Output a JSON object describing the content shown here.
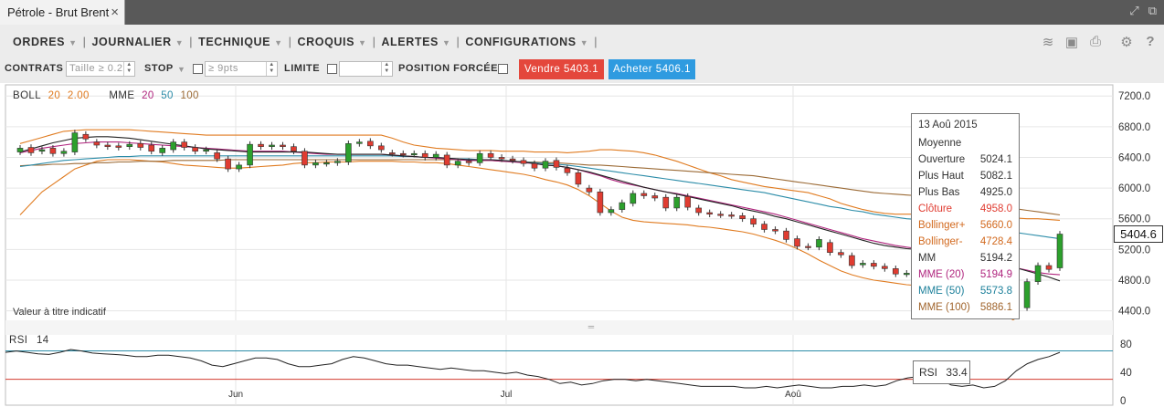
{
  "window": {
    "tab_title": "Pétrole - Brut Brent",
    "close_glyph": "×"
  },
  "menu": [
    {
      "label": "ORDRES"
    },
    {
      "label": "JOURNALIER"
    },
    {
      "label": "TECHNIQUE"
    },
    {
      "label": "CROQUIS"
    },
    {
      "label": "ALERTES"
    },
    {
      "label": "CONFIGURATIONS"
    }
  ],
  "toolbar_icons": [
    "layers-icon",
    "image-icon",
    "print-icon",
    "gear-icon",
    "help-icon"
  ],
  "orderbar": {
    "contrats_label": "CONTRATS",
    "contrats_placeholder": "Taille ≥ 0.2",
    "stop_label": "STOP",
    "stop_placeholder": "≥ 9pts",
    "limite_label": "LIMITE",
    "position_label": "POSITION FORCÉE",
    "sell_label": "Vendre 5403.1",
    "buy_label": "Acheter 5406.1"
  },
  "legend": {
    "boll_name": "BOLL",
    "boll_p1": "20",
    "boll_p2": "2.00",
    "mme_name": "MME",
    "mme_p1": "20",
    "mme_p2": "50",
    "mme_p3": "100"
  },
  "disclaimer": "Valeur à titre indicatif",
  "rsi": {
    "label": "RSI",
    "period": "14",
    "tip_label": "RSI",
    "tip_value": "33.4"
  },
  "last_price": "5404.6",
  "tooltip": {
    "date": "13 Aoû 2015",
    "subtitle": "Moyenne",
    "rows": [
      {
        "label": "Ouverture",
        "value": "5024.1",
        "color": "#333333"
      },
      {
        "label": "Plus Haut",
        "value": "5082.1",
        "color": "#333333"
      },
      {
        "label": "Plus Bas",
        "value": "4925.0",
        "color": "#333333"
      },
      {
        "label": "Clôture",
        "value": "4958.0",
        "color": "#e03c31"
      },
      {
        "label": "Bollinger+",
        "value": "5660.0",
        "color": "#d2691e"
      },
      {
        "label": "Bollinger-",
        "value": "4728.4",
        "color": "#d2691e"
      },
      {
        "label": "MM",
        "value": "5194.2",
        "color": "#333333"
      },
      {
        "label": "MME (20)",
        "value": "5194.9",
        "color": "#b0257e"
      },
      {
        "label": "MME (50)",
        "value": "5573.8",
        "color": "#1b7f9a"
      },
      {
        "label": "MME (100)",
        "value": "5886.1",
        "color": "#a0642c"
      }
    ]
  },
  "colors": {
    "up": "#2ca02c",
    "down": "#e03c31",
    "boll": "#e07b20",
    "mm": "#222222",
    "mme20": "#b0257e",
    "mme50": "#2b8ca8",
    "mme100": "#9b6a35"
  },
  "chart_data": {
    "type": "line",
    "y_axis_labels": [
      "7200.0",
      "6800.0",
      "6400.0",
      "6000.0",
      "5600.0",
      "5200.0",
      "4800.0",
      "4400.0"
    ],
    "y_range": [
      4300,
      7250
    ],
    "x_axis_labels": [
      "Jun",
      "Jul",
      "Aoû"
    ],
    "rsi_axis_labels": [
      "80",
      "40",
      "0"
    ],
    "rsi_range": [
      0,
      90
    ],
    "rsi_levels": [
      70,
      30
    ],
    "candles": [
      {
        "o": 6470,
        "c": 6520
      },
      {
        "o": 6530,
        "c": 6460
      },
      {
        "o": 6480,
        "c": 6500
      },
      {
        "o": 6520,
        "c": 6450
      },
      {
        "o": 6450,
        "c": 6480
      },
      {
        "o": 6470,
        "c": 6720
      },
      {
        "o": 6700,
        "c": 6640
      },
      {
        "o": 6600,
        "c": 6560
      },
      {
        "o": 6560,
        "c": 6540
      },
      {
        "o": 6550,
        "c": 6530
      },
      {
        "o": 6540,
        "c": 6570
      },
      {
        "o": 6580,
        "c": 6530
      },
      {
        "o": 6560,
        "c": 6480
      },
      {
        "o": 6460,
        "c": 6520
      },
      {
        "o": 6500,
        "c": 6600
      },
      {
        "o": 6600,
        "c": 6530
      },
      {
        "o": 6530,
        "c": 6480
      },
      {
        "o": 6480,
        "c": 6500
      },
      {
        "o": 6460,
        "c": 6380
      },
      {
        "o": 6380,
        "c": 6250
      },
      {
        "o": 6250,
        "c": 6300
      },
      {
        "o": 6300,
        "c": 6570
      },
      {
        "o": 6570,
        "c": 6540
      },
      {
        "o": 6540,
        "c": 6560
      },
      {
        "o": 6560,
        "c": 6540
      },
      {
        "o": 6540,
        "c": 6480
      },
      {
        "o": 6480,
        "c": 6300
      },
      {
        "o": 6300,
        "c": 6330
      },
      {
        "o": 6320,
        "c": 6330
      },
      {
        "o": 6330,
        "c": 6350
      },
      {
        "o": 6340,
        "c": 6580
      },
      {
        "o": 6580,
        "c": 6600
      },
      {
        "o": 6610,
        "c": 6550
      },
      {
        "o": 6550,
        "c": 6500
      },
      {
        "o": 6460,
        "c": 6450
      },
      {
        "o": 6450,
        "c": 6440
      },
      {
        "o": 6440,
        "c": 6450
      },
      {
        "o": 6450,
        "c": 6400
      },
      {
        "o": 6400,
        "c": 6440
      },
      {
        "o": 6430,
        "c": 6300
      },
      {
        "o": 6300,
        "c": 6350
      },
      {
        "o": 6350,
        "c": 6330
      },
      {
        "o": 6330,
        "c": 6450
      },
      {
        "o": 6450,
        "c": 6400
      },
      {
        "o": 6400,
        "c": 6380
      },
      {
        "o": 6380,
        "c": 6360
      },
      {
        "o": 6360,
        "c": 6320
      },
      {
        "o": 6320,
        "c": 6260
      },
      {
        "o": 6260,
        "c": 6350
      },
      {
        "o": 6360,
        "c": 6270
      },
      {
        "o": 6260,
        "c": 6200
      },
      {
        "o": 6200,
        "c": 6050
      },
      {
        "o": 6000,
        "c": 5950
      },
      {
        "o": 5950,
        "c": 5680
      },
      {
        "o": 5680,
        "c": 5720
      },
      {
        "o": 5720,
        "c": 5810
      },
      {
        "o": 5800,
        "c": 5930
      },
      {
        "o": 5930,
        "c": 5900
      },
      {
        "o": 5900,
        "c": 5870
      },
      {
        "o": 5880,
        "c": 5740
      },
      {
        "o": 5740,
        "c": 5880
      },
      {
        "o": 5890,
        "c": 5750
      },
      {
        "o": 5740,
        "c": 5680
      },
      {
        "o": 5680,
        "c": 5660
      },
      {
        "o": 5660,
        "c": 5650
      },
      {
        "o": 5650,
        "c": 5640
      },
      {
        "o": 5640,
        "c": 5600
      },
      {
        "o": 5600,
        "c": 5530
      },
      {
        "o": 5530,
        "c": 5460
      },
      {
        "o": 5460,
        "c": 5440
      },
      {
        "o": 5440,
        "c": 5330
      },
      {
        "o": 5340,
        "c": 5240
      },
      {
        "o": 5240,
        "c": 5230
      },
      {
        "o": 5230,
        "c": 5330
      },
      {
        "o": 5290,
        "c": 5160
      },
      {
        "o": 5160,
        "c": 5130
      },
      {
        "o": 5120,
        "c": 4990
      },
      {
        "o": 5000,
        "c": 5020
      },
      {
        "o": 5020,
        "c": 4980
      },
      {
        "o": 4980,
        "c": 4950
      },
      {
        "o": 4950,
        "c": 4880
      },
      {
        "o": 4880,
        "c": 4890
      },
      {
        "o": 4890,
        "c": 5020
      },
      {
        "o": 4920,
        "c": 5080
      },
      {
        "o": 4950,
        "c": 5040
      },
      {
        "o": 5020,
        "c": 4950
      },
      {
        "o": 5024,
        "c": 4958
      },
      {
        "o": 4958,
        "c": 4900
      },
      {
        "o": 4880,
        "c": 4860
      },
      {
        "o": 4840,
        "c": 4800
      },
      {
        "o": 4800,
        "c": 4760
      },
      {
        "o": 4760,
        "c": 4500
      },
      {
        "o": 4440,
        "c": 4780
      },
      {
        "o": 4780,
        "c": 4990
      },
      {
        "o": 4990,
        "c": 4940
      },
      {
        "o": 4960,
        "c": 5400
      }
    ],
    "boll_upper": [
      6580,
      6620,
      6660,
      6700,
      6740,
      6750,
      6760,
      6760,
      6760,
      6760,
      6760,
      6750,
      6740,
      6730,
      6720,
      6710,
      6700,
      6690,
      6690,
      6690,
      6690,
      6690,
      6690,
      6690,
      6690,
      6690,
      6690,
      6690,
      6690,
      6690,
      6690,
      6690,
      6690,
      6690,
      6650,
      6600,
      6560,
      6540,
      6520,
      6510,
      6500,
      6490,
      6490,
      6490,
      6480,
      6480,
      6480,
      6470,
      6470,
      6470,
      6460,
      6470,
      6480,
      6500,
      6500,
      6490,
      6480,
      6460,
      6430,
      6390,
      6350,
      6300,
      6250,
      6200,
      6160,
      6110,
      6080,
      6050,
      6020,
      6000,
      5980,
      5960,
      5940,
      5900,
      5860,
      5800,
      5760,
      5720,
      5690,
      5670,
      5660,
      5660,
      5660,
      5660,
      5660,
      5660,
      5660,
      5650,
      5640,
      5630,
      5620,
      5610,
      5600,
      5600,
      5590,
      5580
    ],
    "boll_lower": [
      5650,
      5800,
      5950,
      6050,
      6150,
      6250,
      6300,
      6350,
      6370,
      6370,
      6370,
      6360,
      6350,
      6340,
      6320,
      6300,
      6290,
      6280,
      6270,
      6260,
      6260,
      6270,
      6280,
      6290,
      6300,
      6320,
      6330,
      6330,
      6340,
      6340,
      6340,
      6350,
      6350,
      6350,
      6350,
      6340,
      6340,
      6330,
      6330,
      6320,
      6300,
      6280,
      6260,
      6240,
      6220,
      6200,
      6180,
      6150,
      6110,
      6080,
      6040,
      5980,
      5900,
      5800,
      5700,
      5620,
      5580,
      5560,
      5550,
      5540,
      5530,
      5520,
      5500,
      5490,
      5470,
      5450,
      5430,
      5400,
      5360,
      5320,
      5270,
      5210,
      5140,
      5060,
      4990,
      4920,
      4870,
      4830,
      4800,
      4780,
      4760,
      4740,
      4730,
      4728,
      4720,
      4700,
      4680,
      4640,
      4560,
      4440,
      4340,
      4260,
      4240,
      4220,
      4210,
      4200
    ],
    "mm": [
      6470,
      6510,
      6550,
      6590,
      6620,
      6650,
      6660,
      6670,
      6670,
      6660,
      6650,
      6630,
      6610,
      6590,
      6570,
      6550,
      6530,
      6510,
      6500,
      6490,
      6480,
      6470,
      6470,
      6470,
      6470,
      6470,
      6470,
      6460,
      6450,
      6440,
      6440,
      6440,
      6440,
      6440,
      6430,
      6420,
      6410,
      6400,
      6400,
      6390,
      6380,
      6370,
      6370,
      6370,
      6360,
      6350,
      6340,
      6320,
      6300,
      6290,
      6270,
      6240,
      6210,
      6170,
      6130,
      6090,
      6050,
      6010,
      5980,
      5950,
      5920,
      5890,
      5860,
      5830,
      5800,
      5770,
      5730,
      5700,
      5670,
      5630,
      5600,
      5560,
      5520,
      5480,
      5440,
      5400,
      5360,
      5320,
      5280,
      5250,
      5230,
      5210,
      5200,
      5194,
      5180,
      5160,
      5140,
      5120,
      5090,
      5050,
      5000,
      4960,
      4920,
      4880,
      4840,
      4790
    ],
    "mme20": [
      6460,
      6490,
      6520,
      6540,
      6560,
      6580,
      6590,
      6600,
      6600,
      6600,
      6590,
      6580,
      6570,
      6560,
      6550,
      6540,
      6530,
      6520,
      6510,
      6500,
      6490,
      6480,
      6480,
      6480,
      6480,
      6470,
      6460,
      6450,
      6440,
      6440,
      6440,
      6440,
      6440,
      6440,
      6430,
      6420,
      6410,
      6400,
      6390,
      6380,
      6370,
      6360,
      6360,
      6360,
      6350,
      6340,
      6330,
      6320,
      6300,
      6290,
      6270,
      6240,
      6200,
      6160,
      6110,
      6070,
      6040,
      6010,
      5980,
      5950,
      5930,
      5900,
      5870,
      5840,
      5810,
      5780,
      5750,
      5720,
      5690,
      5660,
      5620,
      5580,
      5540,
      5500,
      5460,
      5420,
      5380,
      5340,
      5310,
      5280,
      5250,
      5230,
      5210,
      5195,
      5180,
      5160,
      5140,
      5110,
      5080,
      5040,
      4990,
      4960,
      4930,
      4900,
      4880,
      4870
    ],
    "mme50": [
      6280,
      6300,
      6320,
      6340,
      6360,
      6370,
      6380,
      6390,
      6400,
      6410,
      6410,
      6420,
      6420,
      6420,
      6420,
      6420,
      6420,
      6420,
      6420,
      6420,
      6420,
      6420,
      6420,
      6420,
      6420,
      6420,
      6420,
      6420,
      6420,
      6420,
      6420,
      6420,
      6420,
      6420,
      6420,
      6410,
      6410,
      6400,
      6400,
      6390,
      6380,
      6380,
      6370,
      6370,
      6360,
      6350,
      6340,
      6330,
      6320,
      6310,
      6300,
      6280,
      6260,
      6240,
      6220,
      6200,
      6180,
      6160,
      6140,
      6120,
      6100,
      6080,
      6060,
      6040,
      6020,
      6000,
      5980,
      5960,
      5940,
      5910,
      5880,
      5850,
      5820,
      5790,
      5760,
      5740,
      5710,
      5690,
      5660,
      5640,
      5620,
      5600,
      5590,
      5574,
      5560,
      5540,
      5520,
      5500,
      5480,
      5460,
      5440,
      5420,
      5400,
      5380,
      5360,
      5340
    ],
    "mme100": [
      6290,
      6300,
      6300,
      6310,
      6310,
      6320,
      6320,
      6330,
      6330,
      6340,
      6340,
      6350,
      6350,
      6350,
      6360,
      6360,
      6360,
      6360,
      6360,
      6370,
      6370,
      6370,
      6370,
      6370,
      6370,
      6370,
      6370,
      6370,
      6370,
      6370,
      6370,
      6370,
      6370,
      6370,
      6370,
      6370,
      6370,
      6370,
      6370,
      6370,
      6370,
      6360,
      6360,
      6360,
      6350,
      6350,
      6340,
      6340,
      6330,
      6330,
      6320,
      6310,
      6300,
      6300,
      6290,
      6280,
      6270,
      6260,
      6250,
      6240,
      6230,
      6220,
      6210,
      6200,
      6190,
      6180,
      6170,
      6160,
      6140,
      6120,
      6100,
      6080,
      6060,
      6040,
      6020,
      6000,
      5980,
      5960,
      5940,
      5930,
      5920,
      5910,
      5900,
      5886,
      5870,
      5850,
      5830,
      5810,
      5790,
      5770,
      5750,
      5730,
      5710,
      5690,
      5670,
      5650
    ],
    "rsi_values": [
      68,
      70,
      68,
      66,
      65,
      68,
      72,
      70,
      67,
      66,
      65,
      64,
      62,
      62,
      64,
      64,
      62,
      60,
      56,
      50,
      48,
      52,
      56,
      60,
      60,
      58,
      52,
      48,
      48,
      50,
      52,
      58,
      62,
      60,
      56,
      52,
      50,
      50,
      48,
      46,
      44,
      46,
      44,
      42,
      42,
      40,
      38,
      40,
      36,
      34,
      30,
      24,
      26,
      22,
      24,
      28,
      30,
      30,
      28,
      30,
      28,
      26,
      24,
      22,
      20,
      20,
      20,
      20,
      18,
      18,
      20,
      18,
      20,
      22,
      20,
      18,
      18,
      20,
      20,
      22,
      20,
      22,
      28,
      32,
      34,
      33,
      30,
      22,
      20,
      22,
      18,
      20,
      28,
      42,
      52,
      58,
      62,
      68
    ]
  }
}
